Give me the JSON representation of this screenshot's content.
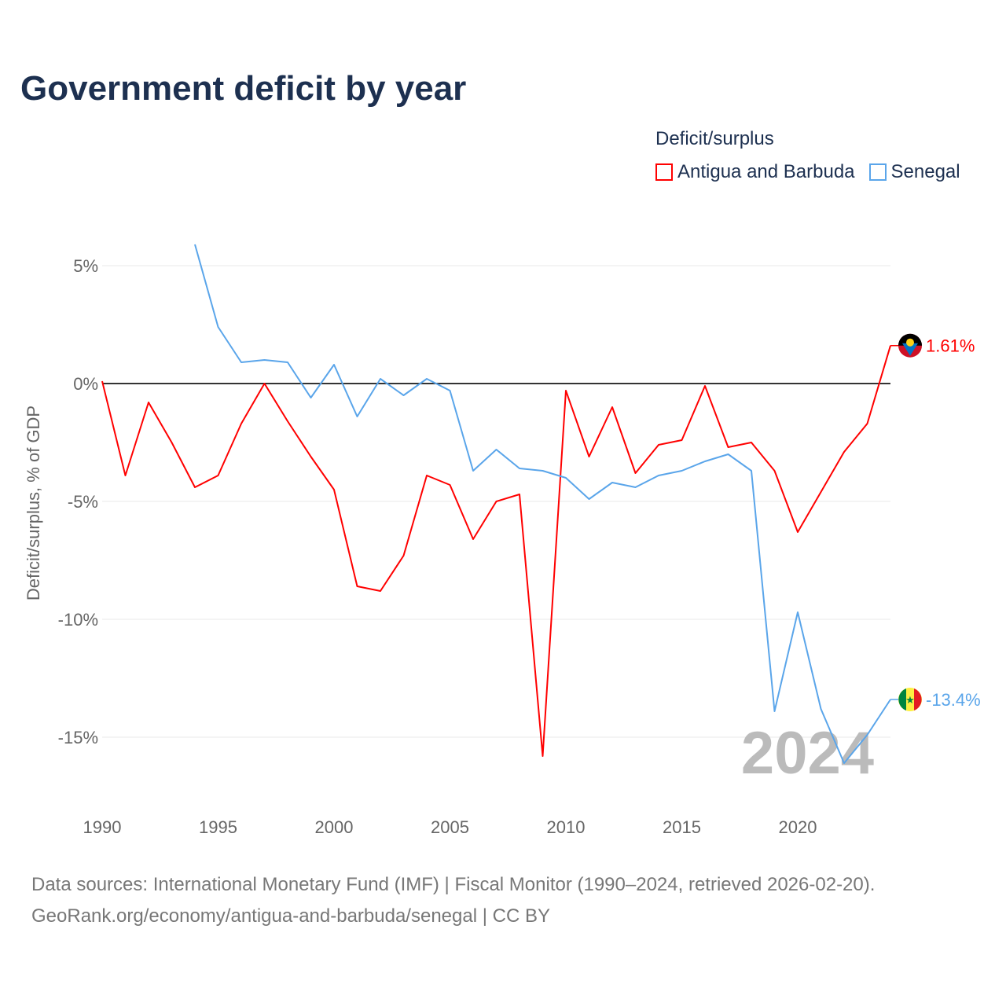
{
  "chart_data": {
    "type": "line",
    "title": "Government deficit by year",
    "ylabel": "Deficit/surplus, % of GDP",
    "xlabel": "",
    "legend_title": "Deficit/surplus",
    "legend_position": "top-right",
    "xlim": [
      1990,
      2024
    ],
    "ylim": [
      -16.5,
      6
    ],
    "x_ticks": [
      1990,
      1995,
      2000,
      2005,
      2010,
      2015,
      2020
    ],
    "y_ticks": [
      5,
      0,
      -5,
      -10,
      -15
    ],
    "y_tick_labels": [
      "5%",
      "0%",
      "-5%",
      "-10%",
      "-15%"
    ],
    "grid": true,
    "watermark_year": "2024",
    "series": [
      {
        "name": "Antigua and Barbuda",
        "color": "#ff0000",
        "end_label": "1.61%",
        "x": [
          1990,
          1991,
          1992,
          1993,
          1994,
          1995,
          1996,
          1997,
          1998,
          1999,
          2000,
          2001,
          2002,
          2003,
          2004,
          2005,
          2006,
          2007,
          2008,
          2009,
          2010,
          2011,
          2012,
          2013,
          2014,
          2015,
          2016,
          2017,
          2018,
          2019,
          2020,
          2021,
          2022,
          2023,
          2024
        ],
        "values": [
          0.1,
          -3.9,
          -0.8,
          -2.5,
          -4.4,
          -3.9,
          -1.7,
          0.0,
          -1.6,
          -3.1,
          -4.5,
          -8.6,
          -8.8,
          -7.3,
          -3.9,
          -4.3,
          -6.6,
          -5.0,
          -4.7,
          -15.8,
          -0.3,
          -3.1,
          -1.0,
          -3.8,
          -2.6,
          -2.4,
          -0.1,
          -2.7,
          -2.5,
          -3.7,
          -6.3,
          -4.6,
          -2.9,
          -1.7,
          1.61
        ]
      },
      {
        "name": "Senegal",
        "color": "#5aa5ea",
        "end_label": "-13.4%",
        "x": [
          1994,
          1995,
          1996,
          1997,
          1998,
          1999,
          2000,
          2001,
          2002,
          2003,
          2004,
          2005,
          2006,
          2007,
          2008,
          2009,
          2010,
          2011,
          2012,
          2013,
          2014,
          2015,
          2016,
          2017,
          2018,
          2019,
          2020,
          2021,
          2022,
          2023,
          2024
        ],
        "values": [
          5.9,
          2.4,
          0.9,
          1.0,
          0.9,
          -0.6,
          0.8,
          -1.4,
          0.2,
          -0.5,
          0.2,
          -0.3,
          -3.7,
          -2.8,
          -3.6,
          -3.7,
          -4.0,
          -4.9,
          -4.2,
          -4.4,
          -3.9,
          -3.7,
          -3.3,
          -3.0,
          -3.7,
          -13.9,
          -9.7,
          -13.8,
          -16.1,
          -14.9,
          -13.4
        ]
      }
    ]
  },
  "source": {
    "line1": "Data sources: International Monetary Fund (IMF) | Fiscal Monitor (1990–2024, retrieved 2026-02-20).",
    "line2": "GeoRank.org/economy/antigua-and-barbuda/senegal | CC BY"
  }
}
